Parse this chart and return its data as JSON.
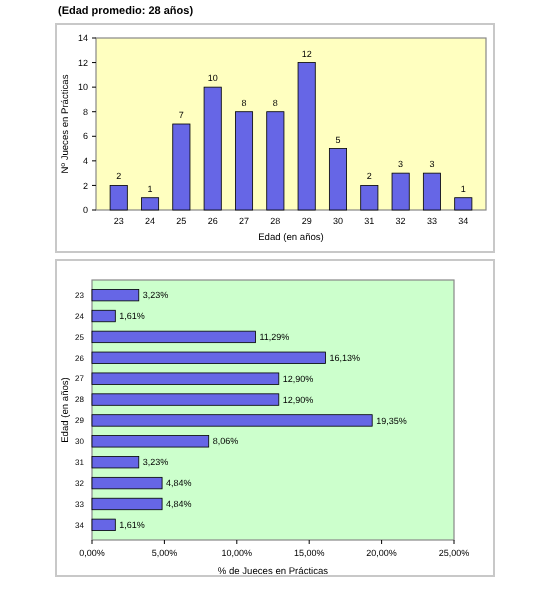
{
  "chart_data": [
    {
      "type": "bar",
      "title": "(Edad promedio: 28 años)",
      "xlabel": "Edad (en años)",
      "ylabel": "Nº Jueces en Prácticas",
      "categories": [
        "23",
        "24",
        "25",
        "26",
        "27",
        "28",
        "29",
        "30",
        "31",
        "32",
        "33",
        "34"
      ],
      "values": [
        2,
        1,
        7,
        10,
        8,
        8,
        12,
        5,
        2,
        3,
        3,
        1
      ],
      "color": "#6666e6",
      "ylim": [
        0,
        14
      ],
      "yticks": [
        0,
        2,
        4,
        6,
        8,
        10,
        12,
        14
      ],
      "data_labels": true,
      "grid": false
    },
    {
      "type": "bar",
      "orientation": "horizontal",
      "xlabel": "% de Jueces en Prácticas",
      "ylabel": "Edad (en años)",
      "categories": [
        "23",
        "24",
        "25",
        "26",
        "27",
        "28",
        "29",
        "30",
        "31",
        "32",
        "33",
        "34"
      ],
      "values": [
        3.23,
        1.61,
        11.29,
        16.13,
        12.9,
        12.9,
        19.35,
        8.06,
        3.23,
        4.84,
        4.84,
        1.61
      ],
      "color": "#6666e6",
      "value_labels": [
        "3,23%",
        "1,61%",
        "11,29%",
        "16,13%",
        "12,90%",
        "12,90%",
        "19,35%",
        "8,06%",
        "3,23%",
        "4,84%",
        "4,84%",
        "1,61%"
      ],
      "xlim": [
        0,
        25
      ],
      "xticks": [
        {
          "value": 0,
          "label": "0,00%"
        },
        {
          "value": 5,
          "label": "5,00%"
        },
        {
          "value": 10,
          "label": "10,00%"
        },
        {
          "value": 15,
          "label": "15,00%"
        },
        {
          "value": 20,
          "label": "20,00%"
        },
        {
          "value": 25,
          "label": "25,00%"
        }
      ],
      "grid": false
    }
  ]
}
